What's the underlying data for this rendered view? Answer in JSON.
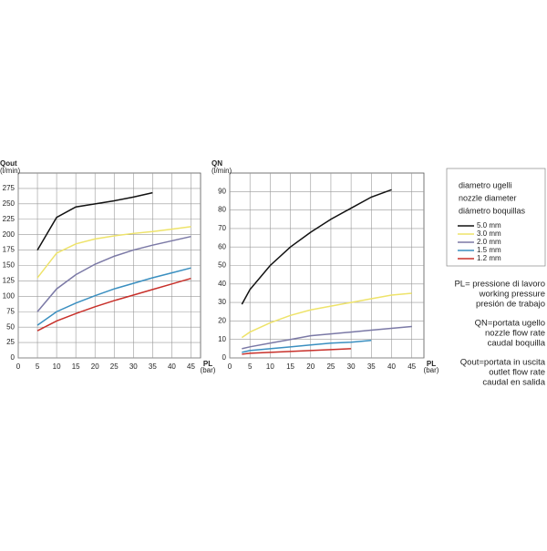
{
  "chart_data": [
    {
      "type": "line",
      "ylabel": "Qout",
      "yunit": "(l/min)",
      "xlabel": "PL",
      "xunit": "(bar)",
      "x": [
        5,
        10,
        15,
        20,
        25,
        30,
        35,
        40,
        45
      ],
      "xlim": [
        0,
        47.5
      ],
      "xticks": [
        0,
        5,
        10,
        15,
        20,
        25,
        30,
        35,
        40,
        45
      ],
      "ylim": [
        0,
        300
      ],
      "yticks": [
        0,
        25,
        50,
        75,
        100,
        125,
        150,
        175,
        200,
        225,
        250,
        275
      ],
      "grid": true,
      "series": [
        {
          "name": "5.0 mm",
          "color": "#111111",
          "values": [
            175,
            228,
            245,
            250,
            255,
            261,
            268,
            null,
            null
          ]
        },
        {
          "name": "3.0 mm",
          "color": "#eee36a",
          "values": [
            130,
            170,
            185,
            193,
            198,
            202,
            205,
            209,
            213
          ]
        },
        {
          "name": "2.0 mm",
          "color": "#7b79a6",
          "values": [
            75,
            112,
            135,
            152,
            165,
            175,
            183,
            190,
            197
          ]
        },
        {
          "name": "1.5 mm",
          "color": "#3a8fc0",
          "values": [
            53,
            75,
            89,
            101,
            112,
            121,
            130,
            138,
            146
          ]
        },
        {
          "name": "1.2 mm",
          "color": "#c8302a",
          "values": [
            44,
            60,
            72,
            83,
            93,
            102,
            111,
            120,
            129
          ]
        }
      ]
    },
    {
      "type": "line",
      "ylabel": "QN",
      "yunit": "(l/min)",
      "xlabel": "PL",
      "xunit": "(bar)",
      "x": [
        3,
        5,
        10,
        15,
        20,
        25,
        30,
        35,
        40,
        45
      ],
      "xlim": [
        0,
        48
      ],
      "xticks": [
        0,
        5,
        10,
        15,
        20,
        25,
        30,
        35,
        40,
        45
      ],
      "ylim": [
        0,
        100
      ],
      "yticks": [
        0,
        10,
        20,
        30,
        40,
        50,
        60,
        70,
        80,
        90
      ],
      "grid": true,
      "series": [
        {
          "color": "#111111",
          "values": [
            29,
            37,
            50,
            60,
            68,
            75,
            81,
            87,
            91,
            null
          ]
        },
        {
          "color": "#eee36a",
          "values": [
            11,
            14,
            19,
            23,
            26,
            28,
            30,
            32,
            34,
            35
          ]
        },
        {
          "color": "#7b79a6",
          "values": [
            5,
            6,
            8,
            10,
            12,
            13,
            14,
            15,
            16,
            17
          ]
        },
        {
          "color": "#3a8fc0",
          "values": [
            3,
            4,
            5,
            6,
            7,
            8,
            8.5,
            9.5,
            null,
            null
          ]
        },
        {
          "color": "#c8302a",
          "values": [
            2,
            2.5,
            3,
            3.5,
            4,
            4.5,
            5,
            null,
            null,
            null
          ]
        }
      ]
    }
  ],
  "legend_title": [
    "diametro ugelli",
    "nozzle diameter",
    "diámetro boquillas"
  ],
  "notes": [
    [
      "PL= pressione di lavoro",
      "working pressure",
      "presión de trabajo"
    ],
    [
      "QN=portata ugello",
      "nozzle flow rate",
      "caudal boquilla"
    ],
    [
      "Qout=portata in uscita",
      "outlet flow rate",
      "caudal en salida"
    ]
  ]
}
